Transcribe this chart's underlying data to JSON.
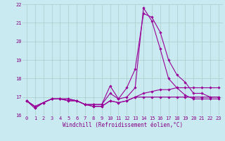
{
  "xlabel": "Windchill (Refroidissement éolien,°C)",
  "bg_color": "#c8eaf0",
  "grid_color": "#aacccc",
  "line_color": "#990099",
  "xlim": [
    -0.5,
    23.5
  ],
  "ylim": [
    16.0,
    22.0
  ],
  "yticks": [
    16,
    17,
    18,
    19,
    20,
    21,
    22
  ],
  "xticks": [
    0,
    1,
    2,
    3,
    4,
    5,
    6,
    7,
    8,
    9,
    10,
    11,
    12,
    13,
    14,
    15,
    16,
    17,
    18,
    19,
    20,
    21,
    22,
    23
  ],
  "series": [
    [
      16.8,
      16.4,
      16.7,
      16.9,
      16.9,
      16.9,
      16.8,
      16.6,
      16.6,
      16.6,
      17.6,
      16.9,
      17.5,
      18.5,
      21.5,
      21.3,
      20.5,
      19.0,
      18.2,
      17.8,
      17.2,
      17.2,
      17.0,
      17.0
    ],
    [
      16.8,
      16.4,
      16.7,
      16.9,
      16.9,
      16.9,
      16.8,
      16.6,
      16.6,
      16.6,
      17.2,
      16.9,
      17.0,
      17.5,
      21.8,
      21.1,
      19.6,
      18.0,
      17.5,
      17.1,
      16.9,
      16.9,
      16.9,
      16.9
    ],
    [
      16.8,
      16.5,
      16.7,
      16.9,
      16.9,
      16.8,
      16.8,
      16.6,
      16.5,
      16.5,
      16.8,
      16.7,
      16.8,
      17.0,
      17.2,
      17.3,
      17.4,
      17.4,
      17.5,
      17.5,
      17.5,
      17.5,
      17.5,
      17.5
    ],
    [
      16.8,
      16.5,
      16.7,
      16.9,
      16.9,
      16.8,
      16.8,
      16.6,
      16.5,
      16.5,
      16.8,
      16.7,
      16.8,
      17.0,
      17.0,
      17.0,
      17.0,
      17.0,
      17.0,
      17.0,
      17.0,
      17.0,
      17.0,
      17.0
    ]
  ],
  "marker": "D",
  "marker_size": 1.8,
  "line_width": 0.8,
  "font_color": "#880088",
  "tick_font_size": 5.0,
  "xlabel_font_size": 5.5
}
